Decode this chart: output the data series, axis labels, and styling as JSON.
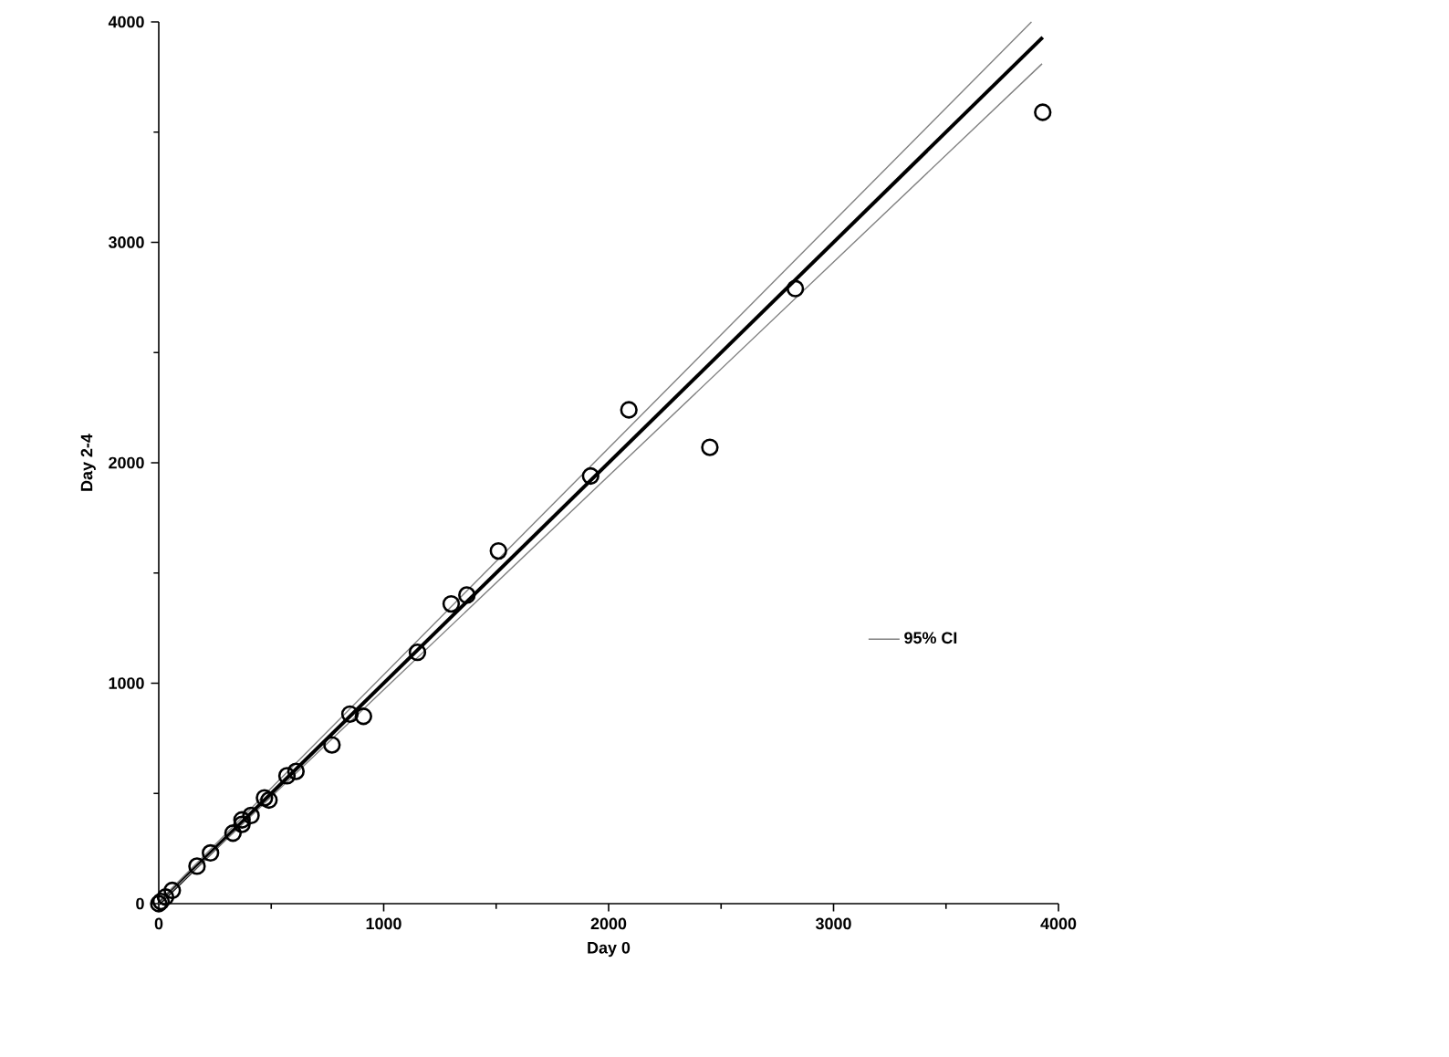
{
  "chart_data": {
    "type": "scatter",
    "xlabel": "Day 0",
    "ylabel": "Day 2-4",
    "xlim": [
      0,
      4000
    ],
    "ylim": [
      0,
      4000
    ],
    "xticks": [
      0,
      1000,
      2000,
      3000,
      4000
    ],
    "yticks": [
      0,
      1000,
      2000,
      3000,
      4000
    ],
    "grid": false,
    "legend": "right",
    "series": [
      {
        "marker": "circle",
        "color": "#000000",
        "x": [
          0,
          10,
          30,
          60,
          170,
          230,
          330,
          370,
          370,
          410,
          470,
          490,
          570,
          610,
          770,
          850,
          910,
          1150,
          1300,
          1370,
          1510,
          1920,
          2090,
          2450,
          2830,
          3930
        ],
        "values": [
          0,
          10,
          30,
          60,
          170,
          230,
          320,
          380,
          360,
          400,
          480,
          470,
          580,
          600,
          720,
          860,
          850,
          1140,
          1360,
          1400,
          1600,
          1940,
          2240,
          2070,
          2790,
          3590
        ]
      },
      {
        "type": "line",
        "marker": "none",
        "color": "#000000",
        "x": [
          0,
          3930
        ],
        "values": [
          0,
          3930
        ]
      },
      {
        "type": "line",
        "marker": "none",
        "name": "95% CI",
        "color": "#808080",
        "x": [
          0,
          3880
        ],
        "values": [
          10,
          4000
        ]
      },
      {
        "type": "line",
        "marker": "none",
        "color": "#808080",
        "x": [
          0,
          3927
        ],
        "values": [
          0,
          3810
        ]
      }
    ]
  }
}
